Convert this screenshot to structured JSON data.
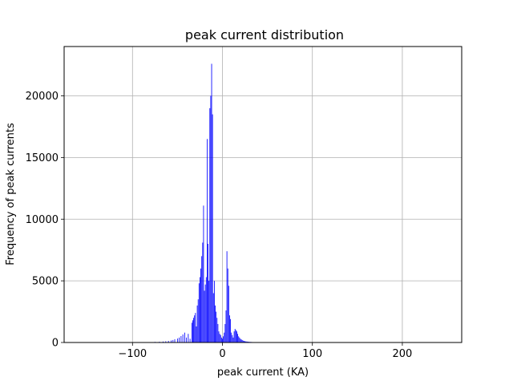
{
  "chart_data": {
    "type": "bar",
    "title": "peak current distribution",
    "xlabel": "peak current (KA)",
    "ylabel": "Frequency of peak currents",
    "xlim": [
      -176,
      266
    ],
    "ylim": [
      0,
      24000
    ],
    "xticks": [
      -100,
      0,
      100,
      200
    ],
    "xtick_labels": [
      "−100",
      "0",
      "100",
      "200"
    ],
    "yticks": [
      0,
      5000,
      10000,
      15000,
      20000
    ],
    "ytick_labels": [
      "0",
      "5000",
      "10000",
      "15000",
      "20000"
    ],
    "grid": true,
    "legend": "none",
    "bar_color": "#0000ff",
    "x": [
      -75,
      -70,
      -66,
      -63,
      -60,
      -57,
      -55,
      -53,
      -50,
      -48,
      -46,
      -44,
      -42,
      -40,
      -38,
      -36,
      -34,
      -33,
      -32,
      -31,
      -30,
      -29,
      -28,
      -27,
      -26,
      -25,
      -24,
      -23,
      -22,
      -21,
      -20,
      -19,
      -18,
      -17,
      -16,
      -15,
      -14,
      -13,
      -12,
      -11,
      -10,
      -9,
      -8,
      -7,
      -6,
      -5,
      -4,
      -3,
      -2,
      -1,
      0,
      1,
      2,
      3,
      4,
      5,
      6,
      7,
      8,
      9,
      10,
      11,
      12,
      13,
      14,
      15,
      16,
      17,
      18,
      19,
      20,
      21,
      22,
      23,
      24,
      25,
      26,
      27,
      28,
      29,
      30,
      31,
      32,
      33,
      34,
      35,
      36,
      38,
      40,
      42,
      44,
      46,
      48,
      50,
      55,
      60
    ],
    "values": [
      50,
      60,
      80,
      100,
      130,
      160,
      200,
      260,
      320,
      400,
      520,
      650,
      800,
      400,
      700,
      300,
      1600,
      1800,
      2000,
      2200,
      2400,
      1300,
      3000,
      3500,
      4800,
      5300,
      6000,
      7000,
      8100,
      11100,
      4200,
      4700,
      5300,
      16500,
      8000,
      5000,
      19000,
      20000,
      22600,
      18500,
      4000,
      5000,
      3000,
      2500,
      2000,
      1500,
      900,
      700,
      600,
      400,
      300,
      500,
      800,
      1500,
      2600,
      7400,
      6000,
      4600,
      2200,
      1900,
      800,
      600,
      400,
      900,
      1100,
      1000,
      900,
      700,
      500,
      400,
      300,
      250,
      200,
      150,
      120,
      100,
      90,
      80,
      70,
      60,
      50,
      45,
      40,
      35,
      30,
      25,
      20,
      18,
      15,
      12,
      10,
      8,
      6,
      5,
      4,
      3
    ]
  }
}
